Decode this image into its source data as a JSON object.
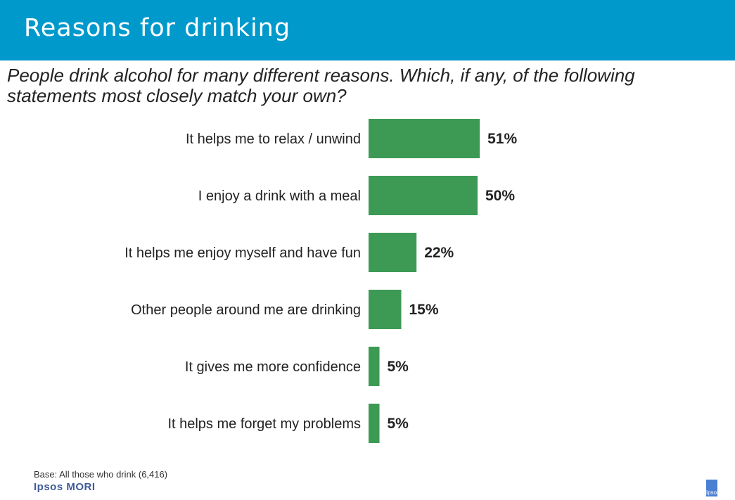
{
  "header": {
    "title": "Reasons for drinking",
    "background": "#0099cc"
  },
  "question": "People drink alcohol for many different reasons. Which, if any, of the following statements most closely match your own?",
  "footer": {
    "base": "Base: All those who drink (6,416)",
    "logo": "Ipsos MORI",
    "brand_mark": "Ipsos"
  },
  "chart_data": {
    "type": "bar",
    "orientation": "horizontal",
    "categories": [
      "It helps me to relax / unwind",
      "I enjoy a drink with a meal",
      "It helps me enjoy myself and have fun",
      "Other people around me are drinking",
      "It gives me more confidence",
      "It helps me forget my problems"
    ],
    "values": [
      51,
      50,
      22,
      15,
      5,
      5
    ],
    "data_labels": [
      "51%",
      "50%",
      "22%",
      "15%",
      "5%",
      "5%"
    ],
    "unit": "%",
    "bar_color": "#3d9a55",
    "grid": false,
    "legend": false
  }
}
